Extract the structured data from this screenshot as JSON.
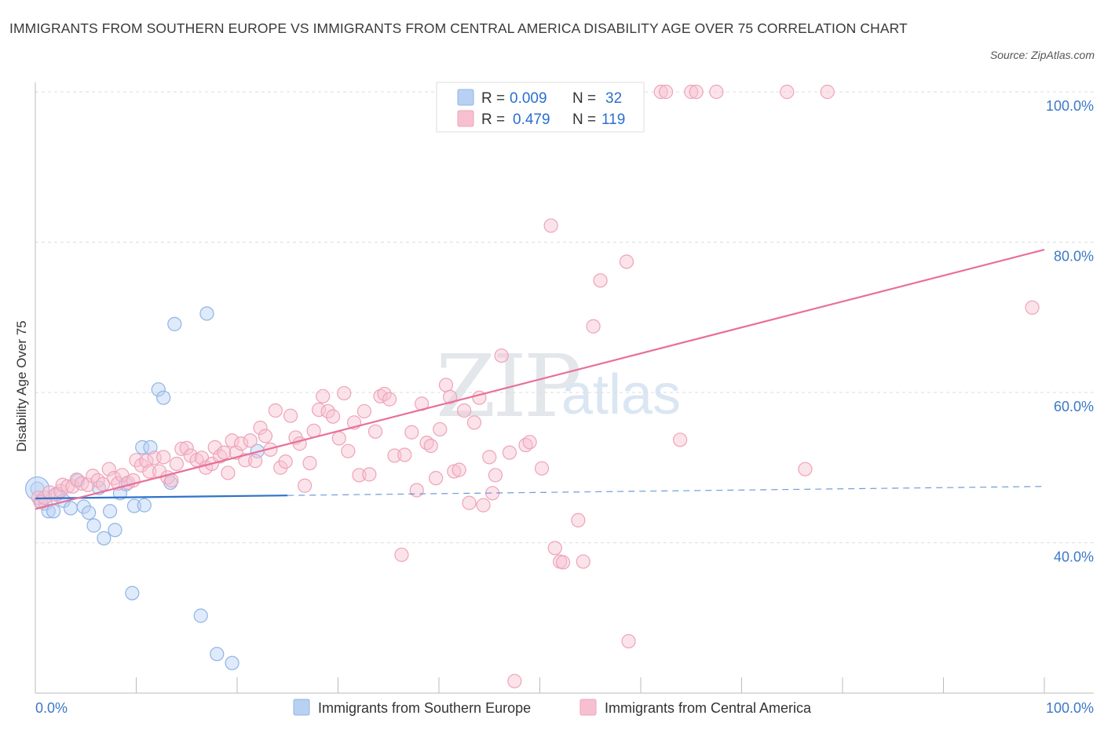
{
  "title": "IMMIGRANTS FROM SOUTHERN EUROPE VS IMMIGRANTS FROM CENTRAL AMERICA DISABILITY AGE OVER 75 CORRELATION CHART",
  "source": "Source: ZipAtlas.com",
  "watermark": {
    "zip": "ZIP",
    "atlas": "atlas"
  },
  "colors": {
    "blue_fill": "#b8d1f3",
    "blue_stroke": "#8fb4e6",
    "blue_line": "#2f72c9",
    "pink_fill": "#f7c0d0",
    "pink_stroke": "#eea3ba",
    "pink_line": "#e8709a",
    "axis_text": "#3b78c9",
    "grid": "#dddddd"
  },
  "legend": {
    "rows": [
      {
        "r_label": "R = ",
        "r_value": "0.009",
        "n_label": "N = ",
        "n_value": "32"
      },
      {
        "r_label": "R = ",
        "r_value": "0.479",
        "n_label": "N = ",
        "n_value": "119"
      }
    ]
  },
  "chart_data": {
    "type": "scatter",
    "ylabel": "Disability Age Over 75",
    "xlim": [
      0,
      100
    ],
    "ylim": [
      20,
      100
    ],
    "y_ticks": [
      {
        "value": 40,
        "label": "40.0%"
      },
      {
        "value": 60,
        "label": "60.0%"
      },
      {
        "value": 80,
        "label": "80.0%"
      },
      {
        "value": 100,
        "label": "100.0%"
      }
    ],
    "x_tick_labels": {
      "min": "0.0%",
      "max": "100.0%"
    },
    "x_minor_ticks": [
      0,
      10,
      20,
      30,
      40,
      50,
      60,
      70,
      80,
      90,
      100
    ],
    "grid": true,
    "legend_position": "top-center",
    "series": [
      {
        "name": "Immigrants from Southern Europe",
        "color": "blue",
        "trend": {
          "x": [
            0,
            25
          ],
          "y": [
            45.9,
            46.3
          ],
          "dashed_to": [
            100,
            47.5
          ]
        },
        "points": [
          [
            0.2,
            47.2
          ],
          [
            0.5,
            45.5
          ],
          [
            1.0,
            45.2
          ],
          [
            1.3,
            44.2
          ],
          [
            1.8,
            44.2
          ],
          [
            2.2,
            46.5
          ],
          [
            2.8,
            45.6
          ],
          [
            3.5,
            44.6
          ],
          [
            4.2,
            48.3
          ],
          [
            4.8,
            44.8
          ],
          [
            5.3,
            44.0
          ],
          [
            5.8,
            42.3
          ],
          [
            6.3,
            47.3
          ],
          [
            6.8,
            40.6
          ],
          [
            7.4,
            44.2
          ],
          [
            7.9,
            41.7
          ],
          [
            8.4,
            46.6
          ],
          [
            9.0,
            47.8
          ],
          [
            9.6,
            33.3
          ],
          [
            9.8,
            44.9
          ],
          [
            10.6,
            52.7
          ],
          [
            10.8,
            45.0
          ],
          [
            11.4,
            52.7
          ],
          [
            12.2,
            60.4
          ],
          [
            12.7,
            59.3
          ],
          [
            13.4,
            48.0
          ],
          [
            13.8,
            69.1
          ],
          [
            16.4,
            30.3
          ],
          [
            17.0,
            70.5
          ],
          [
            18.0,
            25.2
          ],
          [
            19.5,
            24.0
          ],
          [
            22.0,
            52.2
          ]
        ]
      },
      {
        "name": "Immigrants from Central America",
        "color": "pink",
        "trend": {
          "x": [
            0,
            100
          ],
          "y": [
            44.5,
            79.0
          ]
        },
        "points": [
          [
            0.3,
            46.0
          ],
          [
            0.6,
            45.4
          ],
          [
            0.9,
            46.0
          ],
          [
            1.4,
            46.7
          ],
          [
            2.0,
            46.4
          ],
          [
            2.5,
            46.9
          ],
          [
            2.7,
            47.7
          ],
          [
            3.2,
            47.5
          ],
          [
            3.7,
            47.5
          ],
          [
            4.1,
            48.4
          ],
          [
            4.6,
            47.9
          ],
          [
            5.2,
            47.7
          ],
          [
            5.7,
            48.9
          ],
          [
            6.2,
            48.3
          ],
          [
            6.7,
            47.8
          ],
          [
            7.3,
            49.8
          ],
          [
            7.8,
            48.6
          ],
          [
            8.2,
            47.9
          ],
          [
            8.6,
            49.0
          ],
          [
            9.2,
            48.0
          ],
          [
            9.7,
            48.3
          ],
          [
            10.0,
            51.0
          ],
          [
            10.5,
            50.3
          ],
          [
            11.0,
            50.9
          ],
          [
            11.3,
            49.5
          ],
          [
            11.8,
            51.3
          ],
          [
            12.3,
            49.5
          ],
          [
            12.7,
            51.4
          ],
          [
            13.1,
            48.7
          ],
          [
            13.5,
            48.3
          ],
          [
            14.0,
            50.5
          ],
          [
            14.5,
            52.5
          ],
          [
            15.0,
            52.6
          ],
          [
            15.4,
            51.6
          ],
          [
            16.0,
            51.0
          ],
          [
            16.5,
            51.3
          ],
          [
            16.9,
            50.0
          ],
          [
            17.5,
            50.5
          ],
          [
            17.8,
            52.7
          ],
          [
            18.3,
            51.5
          ],
          [
            18.7,
            52.0
          ],
          [
            19.1,
            49.3
          ],
          [
            19.5,
            53.6
          ],
          [
            19.9,
            52.0
          ],
          [
            20.4,
            53.2
          ],
          [
            20.8,
            51.0
          ],
          [
            21.3,
            53.6
          ],
          [
            21.8,
            50.9
          ],
          [
            22.3,
            55.3
          ],
          [
            22.8,
            54.2
          ],
          [
            23.3,
            52.4
          ],
          [
            23.8,
            57.6
          ],
          [
            24.3,
            50.0
          ],
          [
            24.8,
            50.8
          ],
          [
            25.3,
            56.9
          ],
          [
            25.8,
            54.0
          ],
          [
            26.2,
            53.2
          ],
          [
            26.7,
            47.6
          ],
          [
            27.2,
            50.6
          ],
          [
            27.6,
            54.9
          ],
          [
            28.1,
            57.7
          ],
          [
            28.5,
            59.5
          ],
          [
            29.0,
            57.5
          ],
          [
            29.5,
            56.8
          ],
          [
            30.1,
            53.9
          ],
          [
            30.6,
            59.9
          ],
          [
            31.0,
            52.2
          ],
          [
            31.6,
            56.0
          ],
          [
            32.1,
            49.0
          ],
          [
            32.6,
            57.5
          ],
          [
            33.1,
            49.1
          ],
          [
            33.7,
            54.8
          ],
          [
            34.2,
            59.5
          ],
          [
            34.6,
            59.8
          ],
          [
            35.1,
            59.1
          ],
          [
            35.6,
            51.6
          ],
          [
            36.3,
            38.4
          ],
          [
            36.6,
            51.7
          ],
          [
            37.3,
            54.7
          ],
          [
            37.8,
            47.0
          ],
          [
            38.3,
            58.5
          ],
          [
            38.8,
            53.3
          ],
          [
            39.2,
            52.9
          ],
          [
            39.7,
            48.6
          ],
          [
            40.1,
            55.1
          ],
          [
            40.7,
            61.0
          ],
          [
            41.1,
            59.4
          ],
          [
            41.5,
            49.5
          ],
          [
            42.0,
            49.7
          ],
          [
            42.5,
            57.6
          ],
          [
            43.0,
            45.3
          ],
          [
            43.5,
            56.0
          ],
          [
            44.0,
            59.3
          ],
          [
            44.4,
            45.0
          ],
          [
            45.0,
            51.4
          ],
          [
            45.3,
            46.6
          ],
          [
            45.6,
            49.0
          ],
          [
            46.2,
            64.9
          ],
          [
            47.0,
            52.0
          ],
          [
            48.6,
            53.0
          ],
          [
            49.0,
            53.4
          ],
          [
            50.2,
            49.9
          ],
          [
            51.1,
            82.2
          ],
          [
            51.5,
            39.3
          ],
          [
            52.0,
            37.5
          ],
          [
            52.3,
            37.4
          ],
          [
            53.8,
            43.0
          ],
          [
            54.3,
            37.5
          ],
          [
            55.3,
            68.8
          ],
          [
            56.0,
            74.9
          ],
          [
            58.6,
            77.4
          ],
          [
            58.8,
            26.9
          ],
          [
            62.0,
            100.0
          ],
          [
            62.5,
            100.0
          ],
          [
            63.9,
            53.7
          ],
          [
            65.0,
            100.0
          ],
          [
            65.5,
            100.0
          ],
          [
            67.5,
            100.0
          ],
          [
            74.5,
            100.0
          ],
          [
            76.3,
            49.8
          ],
          [
            78.5,
            100.0
          ],
          [
            98.8,
            71.3
          ],
          [
            47.5,
            21.6
          ]
        ]
      }
    ]
  }
}
